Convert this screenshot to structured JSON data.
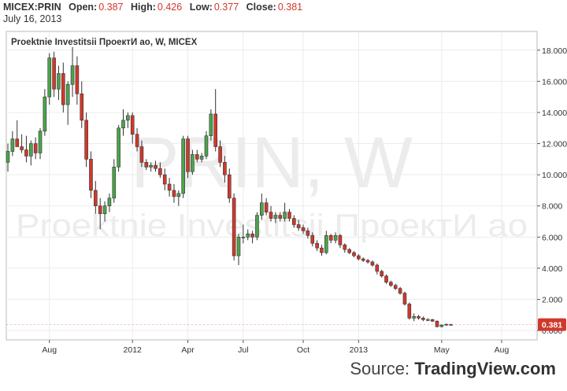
{
  "header": {
    "symbol": "MICEX:PRIN",
    "open_label": "Open:",
    "open": "0.387",
    "high_label": "High:",
    "high": "0.426",
    "low_label": "Low:",
    "low": "0.377",
    "close_label": "Close:",
    "close": "0.381",
    "date": "July 16, 2013"
  },
  "footer": {
    "source_label": "Source:",
    "brand": "TradingView.com"
  },
  "chart_data": {
    "type": "candlestick",
    "title": "Proektnie Investitsii ПроектИ ао, W, MICEX",
    "watermark_ticker": "PRIN, W",
    "watermark_name": "Proektnie Investitsii ПроектИ ао",
    "y_ticks": [
      "0.000",
      "2.000",
      "4.000",
      "6.000",
      "8.000",
      "10.000",
      "12.000",
      "14.000",
      "16.000",
      "18.000"
    ],
    "ylim": [
      -0.6,
      19.2
    ],
    "x_ticks": [
      "Aug",
      "2012",
      "Apr",
      "Jul",
      "Oct",
      "2013",
      "May",
      "Aug"
    ],
    "x_tick_index": [
      9,
      27,
      39,
      51,
      64,
      76,
      94,
      107
    ],
    "last_price": "0.381",
    "grid": true,
    "colors": {
      "up": "#4ca34c",
      "down": "#d1382b",
      "grid": "#ececec",
      "axis": "#555555",
      "text": "#333333",
      "badge": "#d1382b"
    },
    "candles": [
      [
        10.8,
        12.0,
        10.2,
        11.5
      ],
      [
        11.5,
        12.8,
        11.2,
        12.3
      ],
      [
        12.3,
        13.5,
        11.8,
        11.8
      ],
      [
        11.8,
        12.6,
        11.4,
        11.6
      ],
      [
        11.6,
        12.5,
        10.8,
        11.2
      ],
      [
        11.2,
        12.2,
        10.6,
        12.0
      ],
      [
        12.0,
        12.4,
        11.0,
        11.4
      ],
      [
        11.4,
        13.0,
        11.0,
        12.8
      ],
      [
        12.8,
        15.5,
        12.5,
        15.0
      ],
      [
        15.0,
        17.8,
        14.5,
        17.5
      ],
      [
        17.5,
        17.9,
        15.0,
        15.5
      ],
      [
        15.5,
        17.0,
        14.8,
        16.5
      ],
      [
        16.5,
        17.2,
        14.0,
        14.5
      ],
      [
        14.5,
        16.0,
        13.2,
        15.8
      ],
      [
        15.8,
        18.2,
        15.0,
        17.0
      ],
      [
        17.0,
        17.6,
        14.5,
        15.2
      ],
      [
        15.2,
        16.0,
        13.0,
        13.5
      ],
      [
        13.5,
        14.0,
        10.5,
        11.0
      ],
      [
        11.0,
        11.5,
        8.5,
        9.0
      ],
      [
        9.0,
        9.6,
        7.5,
        8.0
      ],
      [
        8.0,
        8.5,
        6.5,
        7.5
      ],
      [
        7.5,
        8.3,
        7.0,
        8.0
      ],
      [
        8.0,
        8.8,
        7.6,
        8.5
      ],
      [
        8.5,
        11.0,
        8.2,
        10.5
      ],
      [
        10.5,
        13.2,
        10.2,
        13.0
      ],
      [
        13.0,
        14.2,
        12.5,
        13.5
      ],
      [
        13.5,
        14.0,
        13.0,
        13.8
      ],
      [
        13.8,
        14.0,
        12.0,
        12.6
      ],
      [
        12.6,
        13.0,
        11.5,
        11.8
      ],
      [
        11.8,
        12.2,
        10.5,
        10.8
      ],
      [
        10.8,
        11.0,
        10.3,
        10.5
      ],
      [
        10.5,
        10.8,
        10.2,
        10.6
      ],
      [
        10.6,
        10.9,
        10.2,
        10.4
      ],
      [
        10.4,
        10.8,
        9.8,
        10.0
      ],
      [
        10.0,
        10.4,
        9.0,
        9.4
      ],
      [
        9.4,
        9.8,
        8.6,
        9.0
      ],
      [
        9.0,
        9.4,
        8.2,
        8.6
      ],
      [
        8.6,
        9.0,
        8.0,
        8.8
      ],
      [
        8.8,
        12.5,
        8.5,
        12.3
      ],
      [
        12.3,
        12.5,
        9.8,
        10.2
      ],
      [
        10.2,
        11.6,
        10.0,
        11.3
      ],
      [
        11.3,
        11.6,
        10.8,
        11.0
      ],
      [
        11.0,
        11.4,
        10.8,
        11.2
      ],
      [
        11.2,
        12.8,
        11.0,
        12.5
      ],
      [
        12.5,
        14.2,
        12.2,
        13.9
      ],
      [
        13.9,
        15.5,
        11.5,
        11.8
      ],
      [
        11.8,
        12.2,
        10.5,
        10.8
      ],
      [
        10.8,
        11.2,
        9.5,
        10.0
      ],
      [
        10.0,
        10.4,
        8.2,
        8.5
      ],
      [
        8.5,
        8.8,
        4.5,
        4.8
      ],
      [
        4.8,
        6.2,
        4.2,
        6.0
      ],
      [
        6.0,
        6.8,
        5.6,
        6.0
      ],
      [
        6.0,
        6.5,
        5.8,
        6.2
      ],
      [
        6.2,
        6.4,
        5.6,
        6.0
      ],
      [
        6.0,
        7.6,
        5.8,
        7.4
      ],
      [
        7.4,
        8.8,
        7.1,
        8.2
      ],
      [
        8.2,
        8.5,
        7.4,
        7.6
      ],
      [
        7.6,
        8.0,
        7.0,
        7.2
      ],
      [
        7.2,
        7.6,
        6.9,
        7.4
      ],
      [
        7.4,
        7.6,
        7.0,
        7.2
      ],
      [
        7.2,
        8.2,
        7.0,
        7.6
      ],
      [
        7.6,
        7.8,
        7.0,
        7.2
      ],
      [
        7.2,
        7.4,
        6.6,
        6.8
      ],
      [
        6.8,
        7.1,
        6.4,
        6.6
      ],
      [
        6.6,
        6.8,
        6.2,
        6.4
      ],
      [
        6.4,
        6.6,
        5.9,
        6.1
      ],
      [
        6.1,
        6.3,
        5.4,
        5.6
      ],
      [
        5.6,
        5.8,
        5.1,
        5.3
      ],
      [
        5.3,
        5.5,
        4.8,
        5.0
      ],
      [
        5.0,
        6.4,
        4.9,
        6.1
      ],
      [
        6.1,
        6.2,
        5.6,
        5.8
      ],
      [
        5.8,
        6.3,
        5.6,
        6.1
      ],
      [
        6.1,
        6.2,
        5.3,
        5.5
      ],
      [
        5.5,
        5.6,
        5.0,
        5.2
      ],
      [
        5.2,
        5.3,
        4.9,
        5.0
      ],
      [
        5.0,
        5.1,
        4.7,
        4.8
      ],
      [
        4.8,
        4.9,
        4.5,
        4.6
      ],
      [
        4.6,
        4.7,
        4.4,
        4.5
      ],
      [
        4.5,
        4.6,
        4.3,
        4.4
      ],
      [
        4.4,
        4.5,
        4.1,
        4.2
      ],
      [
        4.2,
        4.3,
        3.6,
        3.8
      ],
      [
        3.8,
        3.9,
        3.4,
        3.5
      ],
      [
        3.5,
        3.6,
        3.0,
        3.1
      ],
      [
        3.1,
        3.2,
        2.8,
        2.9
      ],
      [
        2.9,
        3.0,
        2.6,
        2.7
      ],
      [
        2.7,
        2.8,
        2.3,
        2.4
      ],
      [
        2.4,
        2.5,
        1.6,
        1.7
      ],
      [
        1.7,
        1.8,
        0.7,
        0.8
      ],
      [
        0.8,
        1.1,
        0.6,
        0.9
      ],
      [
        0.9,
        1.0,
        0.7,
        0.8
      ],
      [
        0.8,
        0.9,
        0.6,
        0.7
      ],
      [
        0.7,
        0.8,
        0.6,
        0.7
      ],
      [
        0.7,
        0.75,
        0.55,
        0.6
      ],
      [
        0.6,
        0.65,
        0.2,
        0.25
      ],
      [
        0.25,
        0.4,
        0.2,
        0.35
      ],
      [
        0.35,
        0.45,
        0.3,
        0.4
      ],
      [
        0.387,
        0.426,
        0.377,
        0.381
      ]
    ]
  }
}
